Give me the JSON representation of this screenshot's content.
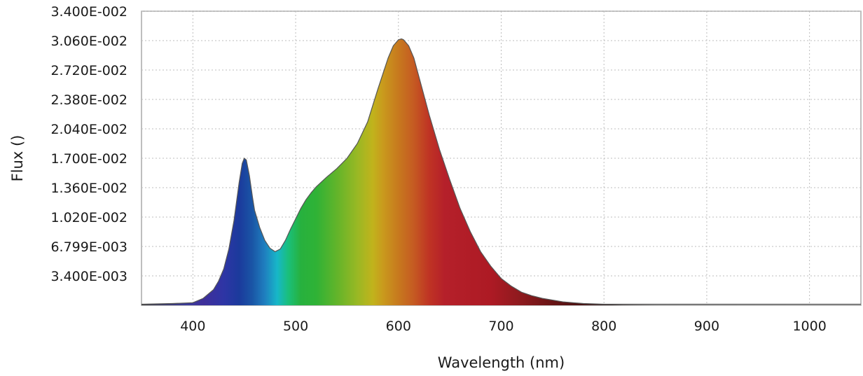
{
  "chart_data": {
    "type": "area",
    "title": "",
    "xlabel": "Wavelength (nm)",
    "ylabel": "Flux ()",
    "xlim": [
      350,
      1050
    ],
    "ylim": [
      0,
      0.034
    ],
    "grid": true,
    "x_ticks": [
      400,
      500,
      600,
      700,
      800,
      900,
      1000
    ],
    "x_tick_labels": [
      "400",
      "500",
      "600",
      "700",
      "800",
      "900",
      "1000"
    ],
    "y_ticks": [
      0.0034,
      0.006799,
      0.0102,
      0.0136,
      0.017,
      0.0204,
      0.0238,
      0.0272,
      0.0306,
      0.034
    ],
    "y_tick_labels": [
      "3.400E-003",
      "6.799E-003",
      "1.020E-002",
      "1.360E-002",
      "1.700E-002",
      "2.040E-002",
      "2.380E-002",
      "2.720E-002",
      "3.060E-002",
      "3.400E-002"
    ],
    "fill": "visible-spectrum gradient by wavelength",
    "series": [
      {
        "x": [
          350,
          380,
          400,
          410,
          420,
          425,
          430,
          435,
          440,
          445,
          448,
          450,
          452,
          455,
          458,
          460,
          465,
          470,
          475,
          480,
          485,
          490,
          495,
          500,
          505,
          510,
          515,
          520,
          530,
          540,
          550,
          560,
          570,
          580,
          590,
          595,
          600,
          603,
          605,
          610,
          615,
          620,
          630,
          640,
          650,
          660,
          670,
          680,
          690,
          700,
          710,
          720,
          730,
          740,
          750,
          760,
          770,
          780,
          800,
          820,
          850,
          900,
          1000,
          1050
        ],
        "y": [
          0.0001,
          0.0002,
          0.0003,
          0.0008,
          0.0018,
          0.0028,
          0.0042,
          0.0065,
          0.0098,
          0.0142,
          0.0164,
          0.017,
          0.0168,
          0.015,
          0.0125,
          0.011,
          0.009,
          0.0075,
          0.0066,
          0.0062,
          0.0065,
          0.0075,
          0.0088,
          0.01,
          0.0112,
          0.0122,
          0.013,
          0.0137,
          0.0148,
          0.0158,
          0.017,
          0.0187,
          0.0212,
          0.025,
          0.0286,
          0.03,
          0.0307,
          0.0308,
          0.0307,
          0.03,
          0.0286,
          0.0264,
          0.022,
          0.018,
          0.0145,
          0.0112,
          0.0085,
          0.0062,
          0.0045,
          0.0031,
          0.0022,
          0.0015,
          0.0011,
          0.0008,
          0.0006,
          0.0004,
          0.0003,
          0.0002,
          0.0001,
          5e-05,
          2e-05,
          1e-05,
          0.0,
          0.0
        ]
      }
    ]
  }
}
